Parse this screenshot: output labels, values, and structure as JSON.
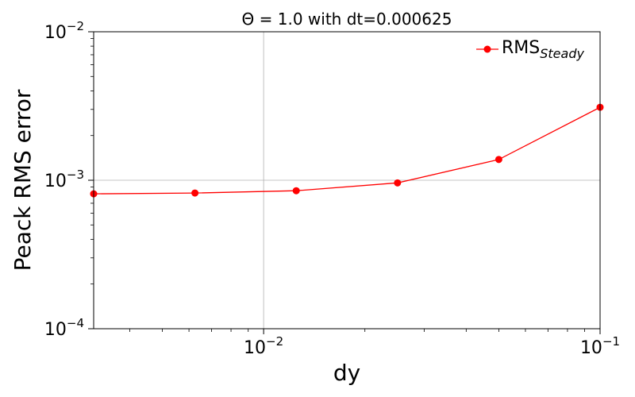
{
  "chart_data": {
    "type": "line",
    "title": "Θ = 1.0 with dt=0.000625",
    "xlabel": "dy",
    "ylabel": "Peack RMS error",
    "x_scale": "log",
    "y_scale": "log",
    "xlim": [
      0.003125,
      0.1
    ],
    "ylim": [
      0.0001,
      0.01
    ],
    "x_ticks": [
      {
        "value": 0.01,
        "base": "10",
        "exp": "−2"
      },
      {
        "value": 0.1,
        "base": "10",
        "exp": "−1"
      }
    ],
    "y_ticks": [
      {
        "value": 0.0001,
        "base": "10",
        "exp": "−4"
      },
      {
        "value": 0.001,
        "base": "10",
        "exp": "−3"
      },
      {
        "value": 0.01,
        "base": "10",
        "exp": "−2"
      }
    ],
    "grid": true,
    "legend_position": "top-right",
    "series": [
      {
        "name": "RMS",
        "name_subscript": "Steady",
        "color": "#ff0000",
        "marker": "circle",
        "x": [
          0.003125,
          0.00625,
          0.0125,
          0.025,
          0.05,
          0.1
        ],
        "y": [
          0.00081,
          0.00082,
          0.00085,
          0.00096,
          0.00138,
          0.0031
        ]
      }
    ]
  }
}
